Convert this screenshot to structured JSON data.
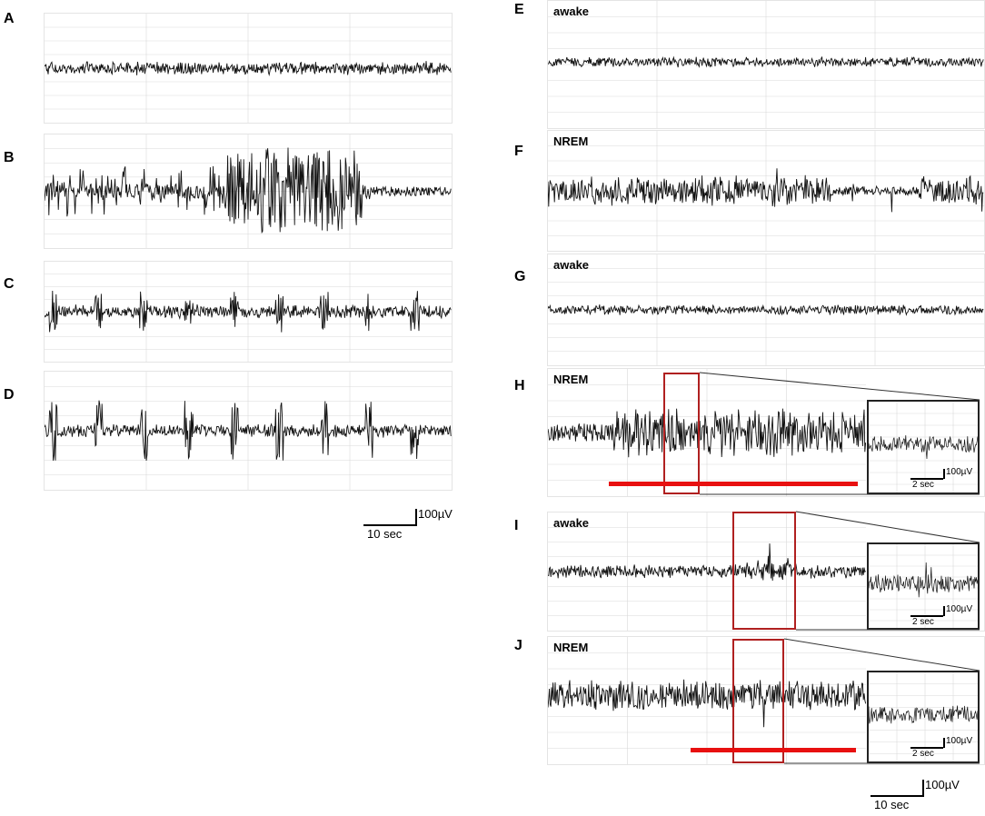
{
  "figure": {
    "left_labels": [
      "A",
      "B",
      "C",
      "D"
    ],
    "right_labels": [
      "E",
      "F",
      "G",
      "H",
      "I",
      "J"
    ],
    "states": {
      "E": "awake",
      "F": "NREM",
      "G": "awake",
      "H": "NREM",
      "I": "awake",
      "J": "NREM"
    },
    "scalebar_left": {
      "amplitude": "100µV",
      "time": "10 sec"
    },
    "scalebar_right": {
      "amplitude": "100µV",
      "time": "10 sec"
    },
    "inset_scale": {
      "amplitude": "100µV",
      "time": "2 sec"
    },
    "colors": {
      "trace": "#111111",
      "grid": "#d9d9d9",
      "zoom_box": "#b02020",
      "red_bar": "#e81010"
    }
  }
}
